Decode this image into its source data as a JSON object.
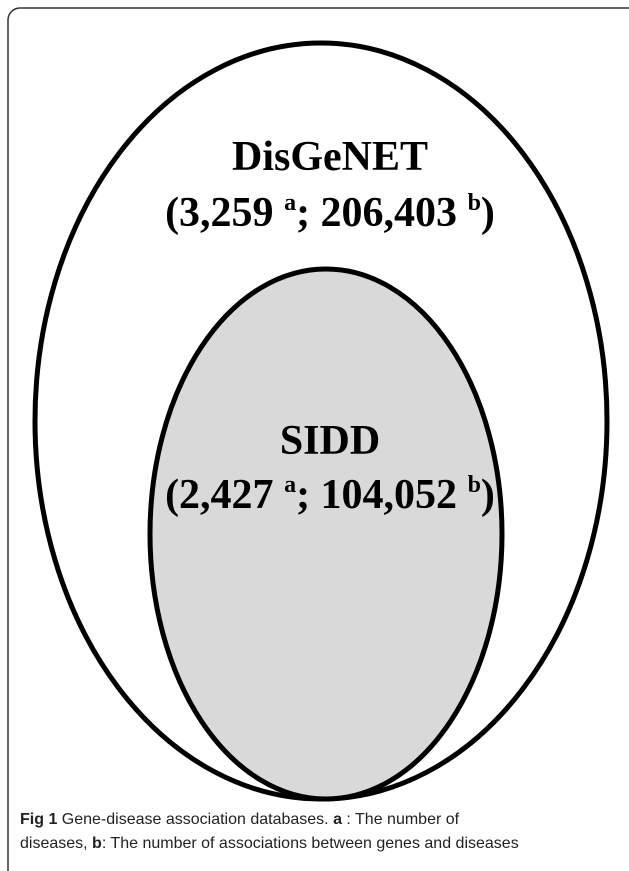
{
  "figure": {
    "outer": {
      "name": "DisGeNET",
      "count_parts": [
        "(3,259 ",
        "a",
        "; 206,403 ",
        "b",
        ")"
      ]
    },
    "inner": {
      "name": "SIDD",
      "count_parts": [
        "(2,427 ",
        "a",
        "; 104,052 ",
        "b",
        ")"
      ]
    }
  },
  "caption": {
    "label": "Fig 1",
    "line1": [
      " Gene-disease association databases. ",
      "a",
      " : The number of"
    ],
    "line2": [
      "diseases, ",
      "b",
      ": The number of associations between genes and diseases"
    ]
  }
}
